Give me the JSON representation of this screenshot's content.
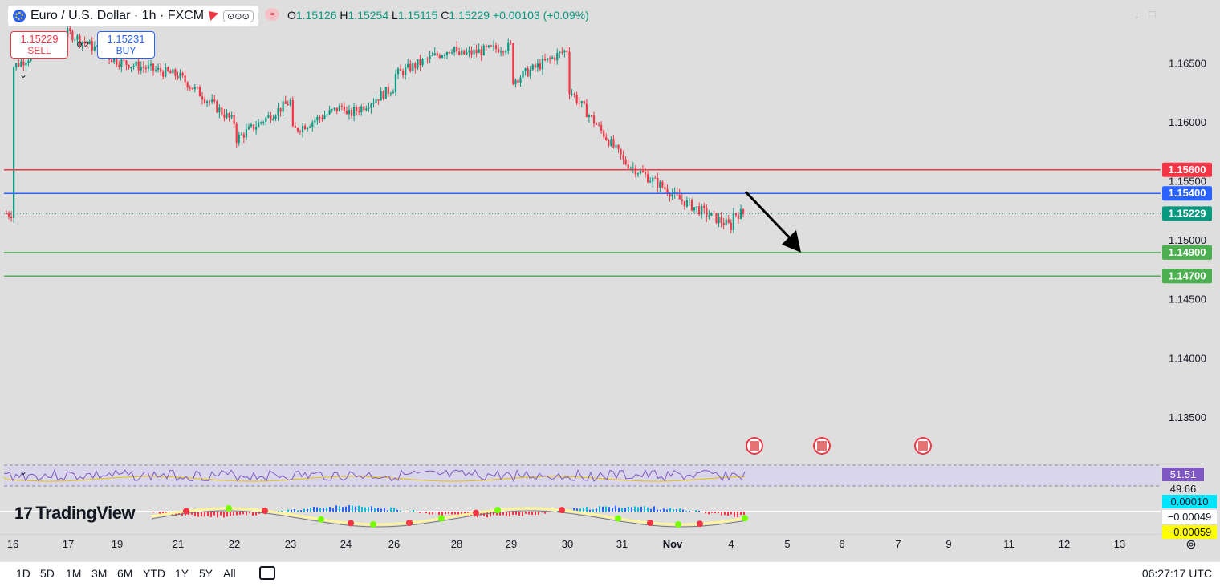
{
  "header": {
    "symbol_title": "Euro / U.S. Dollar · 1h · FXCM",
    "more_label": "⊙⊙⊙",
    "ohlc": {
      "o_label": "O",
      "o_value": "1.15126",
      "h_label": "H",
      "h_value": "1.15254",
      "l_label": "L",
      "l_value": "1.15115",
      "c_label": "C",
      "c_value": "1.15229",
      "change": "+0.00103 (+0.09%)"
    }
  },
  "trade": {
    "sell_price": "1.15229",
    "sell_label": "SELL",
    "buy_price": "1.15231",
    "buy_label": "BUY",
    "spread": "0.2"
  },
  "logo_text": "TradingView",
  "bottom": {
    "ranges": [
      "1D",
      "5D",
      "1M",
      "3M",
      "6M",
      "YTD",
      "1Y",
      "5Y",
      "All"
    ],
    "time": "06:27:17 UTC"
  },
  "colors": {
    "up": "#089981",
    "down": "#f23645",
    "resistance": "#f23645",
    "entry": "#2962ff",
    "support": "#4caf50",
    "rsi": "#7e57c2"
  },
  "chart_data": [
    {
      "type": "candlestick",
      "x_ticks": [
        "16",
        "17",
        "19",
        "21",
        "22",
        "23",
        "24",
        "26",
        "28",
        "29",
        "30",
        "31",
        "Nov",
        "4",
        "5",
        "6",
        "7",
        "9",
        "11",
        "12",
        "13"
      ],
      "y_ticks": [
        "1.16500",
        "1.16000",
        "1.15500",
        "1.15000",
        "1.14500",
        "1.14000",
        "1.13500"
      ],
      "ylim": [
        1.1318,
        1.1693
      ],
      "price_path": [
        [
          "16",
          1.1647
        ],
        [
          "17",
          1.1676
        ],
        [
          "19",
          1.1652
        ],
        [
          "21",
          1.164
        ],
        [
          "22",
          1.16
        ],
        [
          "22",
          1.1585
        ],
        [
          "23",
          1.1618
        ],
        [
          "23",
          1.1592
        ],
        [
          "24",
          1.1615
        ],
        [
          "24",
          1.1605
        ],
        [
          "26",
          1.163
        ],
        [
          "26",
          1.164
        ],
        [
          "28",
          1.1665
        ],
        [
          "28",
          1.1657
        ],
        [
          "29",
          1.1665
        ],
        [
          "29",
          1.1635
        ],
        [
          "30",
          1.1662
        ],
        [
          "30",
          1.159
        ],
        [
          "30",
          1.163
        ],
        [
          "31",
          1.157
        ],
        [
          "31",
          1.1572
        ],
        [
          "31",
          1.1568
        ],
        [
          "Nov",
          1.154
        ],
        [
          "Nov",
          1.1533
        ],
        [
          "Nov",
          1.1538
        ],
        [
          "4",
          1.1512
        ],
        [
          "4",
          1.152
        ],
        [
          "4",
          1.15229
        ]
      ],
      "horizontal_levels": [
        {
          "label": "1.15600",
          "value": 1.156,
          "color": "#f23645",
          "style": "solid"
        },
        {
          "label": "1.15400",
          "value": 1.154,
          "color": "#2962ff",
          "style": "solid"
        },
        {
          "label": "1.15229",
          "value": 1.15229,
          "color": "#089981",
          "style": "dotted"
        },
        {
          "label": "1.14900",
          "value": 1.149,
          "color": "#4caf50",
          "style": "solid"
        },
        {
          "label": "1.14700",
          "value": 1.147,
          "color": "#4caf50",
          "style": "solid"
        }
      ],
      "annotation": "downward arrow from the last price towards 1.14900",
      "event_markers": [
        "4",
        "5",
        "7"
      ]
    },
    {
      "type": "line",
      "name": "RSI",
      "last_value": "51.51",
      "ma_value": "49.66"
    },
    {
      "type": "histogram",
      "labels": [
        "0.00010",
        "−0.00049",
        "−0.00059"
      ]
    }
  ]
}
